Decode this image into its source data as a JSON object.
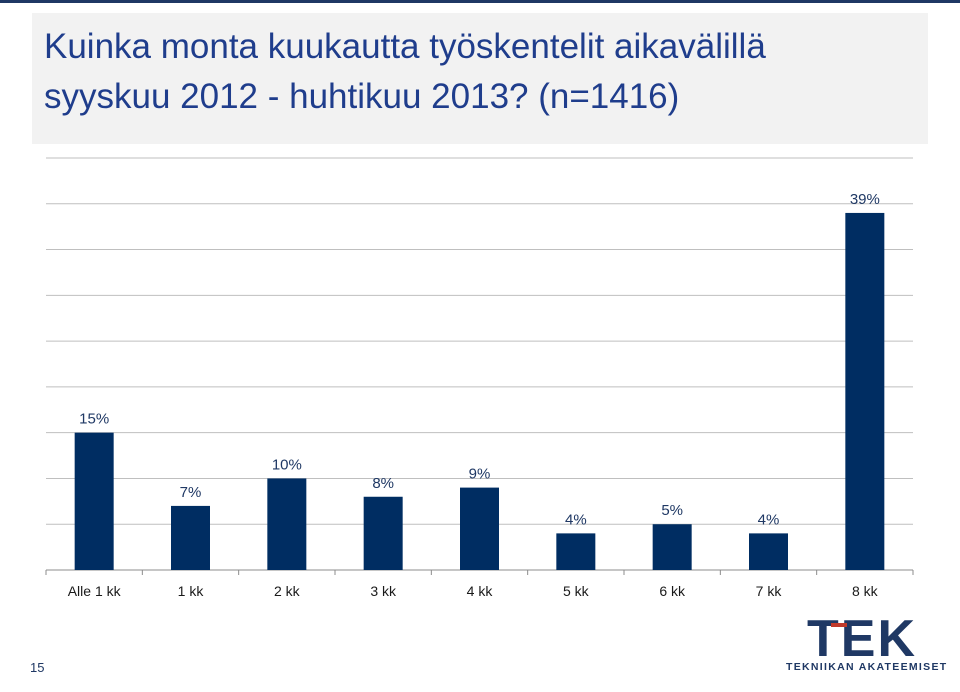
{
  "slide": {
    "title_line1": "Kuinka monta kuukautta työskentelit aikavälillä",
    "title_line2": "syyskuu 2012 - huhtikuu 2013? (n=1416)",
    "page_number": "15",
    "logo_wordmark": "TEK",
    "logo_subtitle": "TEKNIIKAN AKATEEMISET"
  },
  "colors": {
    "bar": "#002d62",
    "title": "#1f3d8c",
    "grid": "#bfbfbf"
  },
  "chart_data": {
    "type": "bar",
    "categories": [
      "Alle 1 kk",
      "1 kk",
      "2 kk",
      "3 kk",
      "4 kk",
      "5 kk",
      "6 kk",
      "7 kk",
      "8 kk"
    ],
    "values": [
      15,
      7,
      10,
      8,
      9,
      4,
      5,
      4,
      39
    ],
    "data_labels": [
      "15%",
      "7%",
      "10%",
      "8%",
      "9%",
      "4%",
      "5%",
      "4%",
      "39%"
    ],
    "unit": "%",
    "ylim": [
      0,
      45
    ],
    "grid": true,
    "legend": "none"
  }
}
